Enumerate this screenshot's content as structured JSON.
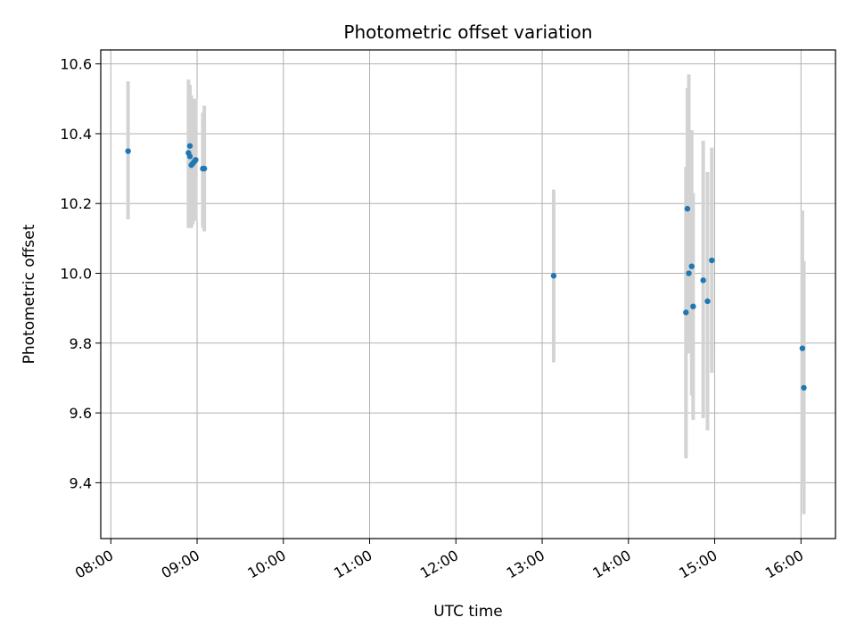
{
  "chart_data": {
    "type": "scatter",
    "title": "Photometric offset variation",
    "xlabel": "UTC time",
    "ylabel": "Photometric offset",
    "x_tick_labels": [
      "08:00",
      "09:00",
      "10:00",
      "11:00",
      "12:00",
      "13:00",
      "14:00",
      "15:00",
      "16:00"
    ],
    "x_tick_values_hours": [
      8,
      9,
      10,
      11,
      12,
      13,
      14,
      15,
      16
    ],
    "y_tick_labels": [
      "9.4",
      "9.6",
      "9.8",
      "10.0",
      "10.2",
      "10.4",
      "10.6"
    ],
    "y_tick_values": [
      9.4,
      9.6,
      9.8,
      10.0,
      10.2,
      10.4,
      10.6
    ],
    "xlim": [
      "07:53",
      "16:24"
    ],
    "ylim": [
      9.24,
      10.64
    ],
    "grid": true,
    "colors": {
      "point": "#1f77b4",
      "errorbar": "#d3d3d3",
      "grid": "#b0b0b0"
    },
    "series": [
      {
        "points": [
          {
            "time": "08:12",
            "y": 10.35,
            "err_low": 10.155,
            "err_high": 10.55
          },
          {
            "time": "08:54",
            "y": 10.345,
            "err_low": 10.13,
            "err_high": 10.555
          },
          {
            "time": "08:55",
            "y": 10.365,
            "err_low": 10.14,
            "err_high": 10.54
          },
          {
            "time": "08:55",
            "y": 10.335,
            "err_low": 10.13,
            "err_high": 10.53
          },
          {
            "time": "08:56",
            "y": 10.31,
            "err_low": 10.13,
            "err_high": 10.51
          },
          {
            "time": "08:57",
            "y": 10.315,
            "err_low": 10.14,
            "err_high": 10.49
          },
          {
            "time": "08:58",
            "y": 10.32,
            "err_low": 10.15,
            "err_high": 10.5
          },
          {
            "time": "08:59",
            "y": 10.325,
            "err_low": 10.15,
            "err_high": 10.5
          },
          {
            "time": "09:04",
            "y": 10.3,
            "err_low": 10.13,
            "err_high": 10.46
          },
          {
            "time": "09:05",
            "y": 10.3,
            "err_low": 10.12,
            "err_high": 10.48
          },
          {
            "time": "13:08",
            "y": 9.993,
            "err_low": 9.745,
            "err_high": 10.24
          },
          {
            "time": "14:40",
            "y": 9.888,
            "err_low": 9.47,
            "err_high": 10.305
          },
          {
            "time": "14:41",
            "y": 10.185,
            "err_low": 9.83,
            "err_high": 10.53
          },
          {
            "time": "14:42",
            "y": 10.0,
            "err_low": 9.77,
            "err_high": 10.57
          },
          {
            "time": "14:44",
            "y": 10.02,
            "err_low": 9.65,
            "err_high": 10.41
          },
          {
            "time": "14:45",
            "y": 9.905,
            "err_low": 9.58,
            "err_high": 10.23
          },
          {
            "time": "14:52",
            "y": 9.98,
            "err_low": 9.585,
            "err_high": 10.38
          },
          {
            "time": "14:55",
            "y": 9.92,
            "err_low": 9.55,
            "err_high": 10.29
          },
          {
            "time": "14:58",
            "y": 10.037,
            "err_low": 9.715,
            "err_high": 10.36
          },
          {
            "time": "16:01",
            "y": 9.785,
            "err_low": 9.395,
            "err_high": 10.18
          },
          {
            "time": "16:02",
            "y": 9.672,
            "err_low": 9.31,
            "err_high": 10.035
          }
        ]
      }
    ]
  }
}
